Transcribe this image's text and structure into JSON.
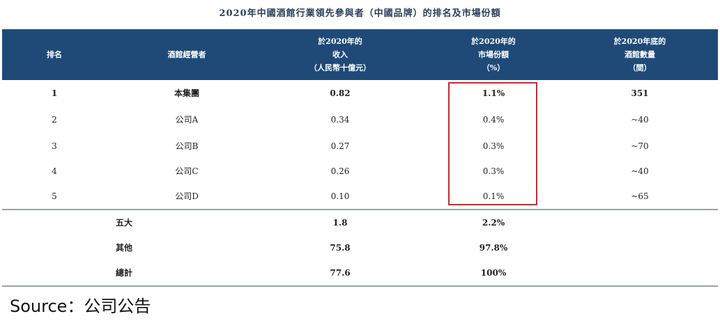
{
  "title": "2020年中國酒館行業領先參與者（中國品牌）的排名及市場份額",
  "headers": {
    "rank": "排名",
    "operator": "酒館經營者",
    "revenue": [
      "於2020年的",
      "收入",
      "（人民幣十億元）"
    ],
    "share": [
      "於2020年的",
      "市場份額",
      "（%）"
    ],
    "count": [
      "於2020年底的",
      "酒館數量",
      "（間）"
    ]
  },
  "rows": [
    {
      "rank": "1",
      "operator": "本集團",
      "revenue": "0.82",
      "share": "1.1%",
      "count": "351"
    },
    {
      "rank": "2",
      "operator": "公司A",
      "revenue": "0.34",
      "share": "0.4%",
      "count": "~40"
    },
    {
      "rank": "3",
      "operator": "公司B",
      "revenue": "0.27",
      "share": "0.3%",
      "count": "~70"
    },
    {
      "rank": "4",
      "operator": "公司C",
      "revenue": "0.26",
      "share": "0.3%",
      "count": "~40"
    },
    {
      "rank": "5",
      "operator": "公司D",
      "revenue": "0.10",
      "share": "0.1%",
      "count": "~65"
    }
  ],
  "summary": [
    {
      "label": "五大",
      "revenue": "1.8",
      "share": "2.2%"
    },
    {
      "label": "其他",
      "revenue": "75.8",
      "share": "97.8%"
    },
    {
      "label": "總計",
      "revenue": "77.6",
      "share": "100%"
    }
  ],
  "source": "Source：公司公告",
  "colors": {
    "header_bg": "#1f4a78",
    "highlight_box": "#d8232a"
  }
}
